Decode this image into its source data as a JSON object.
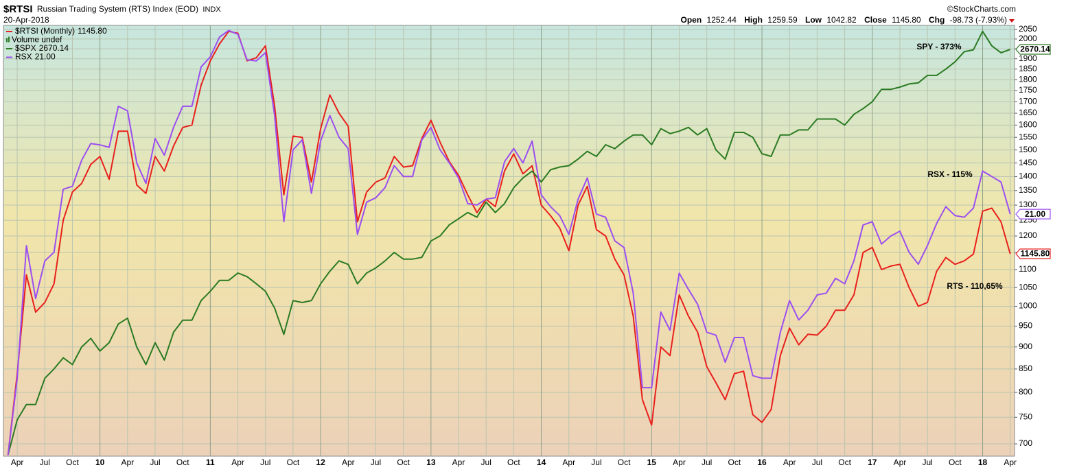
{
  "header": {
    "symbol": "$RTSI",
    "name": "Russian Trading System (RTS) Index (EOD)",
    "exchange": "INDX",
    "date": "20-Apr-2018",
    "copyright": "©StockCharts.com",
    "quote": [
      {
        "label": "Open",
        "value": "1252.44"
      },
      {
        "label": "High",
        "value": "1259.59"
      },
      {
        "label": "Low",
        "value": "1042.82"
      },
      {
        "label": "Close",
        "value": "1145.80"
      },
      {
        "label": "Chg",
        "value": "-98.73 (-7.93%)"
      }
    ]
  },
  "chart_data": {
    "type": "line",
    "log_scale": true,
    "grid": true,
    "volume_label": "Volume undef",
    "annotations": [
      {
        "text": "SPY - 373%",
        "color": "#2a7a22"
      },
      {
        "text": "RSX - 115%",
        "color": "#9b4ef0"
      },
      {
        "text": "RTS - 110,65%",
        "color": "#e8201c"
      }
    ],
    "ylim": [
      678,
      2072
    ],
    "yticks": [
      700,
      750,
      800,
      850,
      900,
      950,
      1000,
      1050,
      1100,
      1150,
      1200,
      1250,
      1300,
      1350,
      1400,
      1450,
      1500,
      1550,
      1600,
      1650,
      1700,
      1750,
      1800,
      1850,
      1900,
      1950,
      2000,
      2050
    ],
    "categories": [
      null,
      "Apr",
      null,
      null,
      "Jul",
      null,
      null,
      "Oct",
      null,
      null,
      "10",
      null,
      null,
      "Apr",
      null,
      null,
      "Jul",
      null,
      null,
      "Oct",
      null,
      null,
      "11",
      null,
      null,
      "Apr",
      null,
      null,
      "Jul",
      null,
      null,
      "Oct",
      null,
      null,
      "12",
      null,
      null,
      "Apr",
      null,
      null,
      "Jul",
      null,
      null,
      "Oct",
      null,
      null,
      "13",
      null,
      null,
      "Apr",
      null,
      null,
      "Jul",
      null,
      null,
      "Oct",
      null,
      null,
      "14",
      null,
      null,
      "Apr",
      null,
      null,
      "Jul",
      null,
      null,
      "Oct",
      null,
      null,
      "15",
      null,
      null,
      "Apr",
      null,
      null,
      "Jul",
      null,
      null,
      "Oct",
      null,
      null,
      "16",
      null,
      null,
      "Apr",
      null,
      null,
      "Jul",
      null,
      null,
      "Oct",
      null,
      null,
      "17",
      null,
      null,
      "Apr",
      null,
      null,
      "Jul",
      null,
      null,
      "Oct",
      null,
      null,
      "18",
      null,
      null,
      "Apr"
    ],
    "series": [
      {
        "name": "$RTSI (Monthly)",
        "color": "#e8201c",
        "last_label": "1145.80",
        "values": [
          680,
          840,
          1085,
          985,
          1010,
          1060,
          1250,
          1345,
          1375,
          1445,
          1475,
          1390,
          1575,
          1575,
          1370,
          1340,
          1475,
          1420,
          1515,
          1590,
          1600,
          1775,
          1890,
          1975,
          2040,
          2030,
          1890,
          1905,
          1965,
          1680,
          1335,
          1555,
          1550,
          1380,
          1585,
          1730,
          1650,
          1595,
          1245,
          1345,
          1380,
          1395,
          1475,
          1435,
          1440,
          1545,
          1620,
          1530,
          1455,
          1405,
          1335,
          1275,
          1320,
          1295,
          1420,
          1485,
          1410,
          1440,
          1300,
          1265,
          1225,
          1155,
          1300,
          1365,
          1220,
          1200,
          1130,
          1085,
          975,
          785,
          735,
          900,
          880,
          1030,
          975,
          935,
          855,
          820,
          785,
          840,
          845,
          755,
          740,
          765,
          880,
          945,
          905,
          930,
          928,
          950,
          990,
          990,
          1030,
          1150,
          1165,
          1100,
          1110,
          1115,
          1050,
          1000,
          1010,
          1095,
          1135,
          1115,
          1125,
          1145,
          1280,
          1290,
          1245,
          1145.8
        ]
      },
      {
        "name": "$SPX",
        "color": "#2a7a22",
        "last_label": "2670.14",
        "ylim": [
          929.8,
          2841.6
        ],
        "values": [
          933,
          1022,
          1063,
          1063,
          1138,
          1166,
          1200,
          1179,
          1234,
          1262,
          1221,
          1248,
          1310,
          1330,
          1234,
          1179,
          1248,
          1193,
          1282,
          1323,
          1323,
          1392,
          1426,
          1467,
          1467,
          1495,
          1481,
          1454,
          1426,
          1365,
          1275,
          1392,
          1385,
          1392,
          1454,
          1502,
          1543,
          1529,
          1454,
          1495,
          1515,
          1543,
          1577,
          1550,
          1550,
          1557,
          1625,
          1646,
          1694,
          1721,
          1749,
          1728,
          1797,
          1749,
          1790,
          1865,
          1913,
          1947,
          1893,
          1954,
          1968,
          1975,
          2009,
          2050,
          2023,
          2085,
          2064,
          2105,
          2139,
          2139,
          2085,
          2174,
          2146,
          2160,
          2181,
          2139,
          2174,
          2057,
          2009,
          2153,
          2153,
          2126,
          2037,
          2023,
          2139,
          2139,
          2167,
          2167,
          2229,
          2229,
          2229,
          2194,
          2256,
          2290,
          2331,
          2407,
          2407,
          2421,
          2441,
          2448,
          2496,
          2496,
          2537,
          2585,
          2654,
          2667,
          2798,
          2695,
          2647,
          2670.14
        ]
      },
      {
        "name": "RSX",
        "color": "#9b4ef0",
        "last_label": "21.00",
        "ylim": [
          11.21,
          34.26
        ],
        "values": [
          11.24,
          13.72,
          19.35,
          16.87,
          18.6,
          19.02,
          22.4,
          22.57,
          24.14,
          25.22,
          25.13,
          24.97,
          27.78,
          27.45,
          23.98,
          22.74,
          25.55,
          24.47,
          26.29,
          27.78,
          27.78,
          30.76,
          31.58,
          33.24,
          33.81,
          33.48,
          31.33,
          31.25,
          31.91,
          27.12,
          20.59,
          24.8,
          25.46,
          22.16,
          25.38,
          27.12,
          25.63,
          24.89,
          19.92,
          21.66,
          21.91,
          22.49,
          23.81,
          23.15,
          23.15,
          25.46,
          26.29,
          24.8,
          23.98,
          23.07,
          21.58,
          21.5,
          21.83,
          21.91,
          24.06,
          24.89,
          23.98,
          25.38,
          22.07,
          21.41,
          20.92,
          19.92,
          21.83,
          23.07,
          21.0,
          20.83,
          19.59,
          19.26,
          17.11,
          13.39,
          13.39,
          16.29,
          15.54,
          18.02,
          17.28,
          16.62,
          15.46,
          15.34,
          14.3,
          15.25,
          15.25,
          13.81,
          13.72,
          13.72,
          15.46,
          16.78,
          15.96,
          16.37,
          17.03,
          17.11,
          17.78,
          17.53,
          18.6,
          20.42,
          20.59,
          19.43,
          19.84,
          20.09,
          19.02,
          18.44,
          19.35,
          20.5,
          21.41,
          20.92,
          20.83,
          21.33,
          23.48,
          23.15,
          22.82,
          21.0
        ]
      }
    ]
  }
}
